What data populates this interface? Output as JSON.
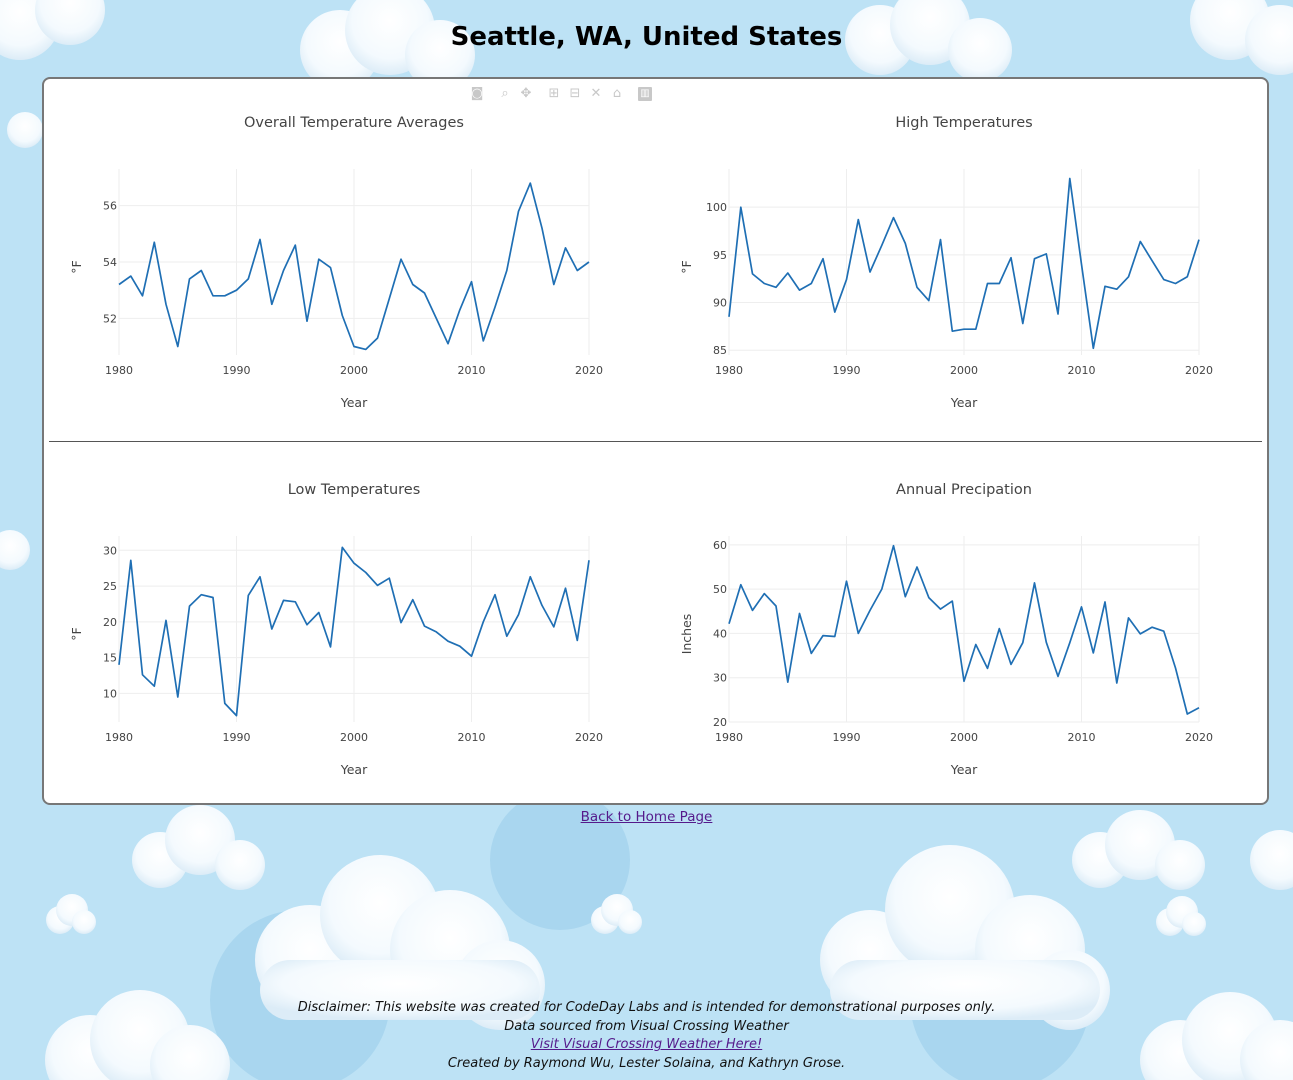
{
  "page": {
    "title": "Seattle, WA, United States",
    "home_link": "Back to Home Page",
    "footer": {
      "disclaimer": "Disclaimer: This website was created for CodeDay Labs and is intended for demonstrational purposes only.",
      "source": "Data sourced from Visual Crossing Weather",
      "visit_link": "Visit Visual Crossing Weather Here!",
      "credits": "Created by Raymond Wu, Lester Solaina, and Kathryn Grose."
    }
  },
  "modebar": {
    "icons": [
      "camera-icon",
      "zoom-icon",
      "pan-icon",
      "zoom-in-icon",
      "zoom-out-icon",
      "autoscale-icon",
      "reset-axes-icon",
      "plotly-logo-icon"
    ]
  },
  "colors": {
    "line": "#1f6fb4",
    "background": "#bde2f5"
  },
  "chart_data": [
    {
      "type": "line",
      "title": "Overall Temperature Averages",
      "xlabel": "Year",
      "ylabel": "°F",
      "xlim": [
        1980,
        2020
      ],
      "ylim": [
        50.7,
        57.3
      ],
      "xticks": [
        1980,
        1990,
        2000,
        2010,
        2020
      ],
      "yticks": [
        52,
        54,
        56
      ],
      "grid": true,
      "x": [
        1980,
        1981,
        1982,
        1983,
        1984,
        1985,
        1986,
        1987,
        1988,
        1989,
        1990,
        1991,
        1992,
        1993,
        1994,
        1995,
        1996,
        1997,
        1998,
        1999,
        2000,
        2001,
        2002,
        2003,
        2004,
        2005,
        2006,
        2007,
        2008,
        2009,
        2010,
        2011,
        2012,
        2013,
        2014,
        2015,
        2016,
        2017,
        2018,
        2019,
        2020
      ],
      "values": [
        53.2,
        53.5,
        52.8,
        54.7,
        52.5,
        51.0,
        53.4,
        53.7,
        52.8,
        52.8,
        53.0,
        53.4,
        54.8,
        52.5,
        53.7,
        54.6,
        51.9,
        54.1,
        53.8,
        52.1,
        51.0,
        50.9,
        51.3,
        52.7,
        54.1,
        53.2,
        52.9,
        52.0,
        51.1,
        52.3,
        53.3,
        51.2,
        52.4,
        53.7,
        55.8,
        56.8,
        55.2,
        53.2,
        54.5,
        53.7,
        54.0
      ]
    },
    {
      "type": "line",
      "title": "High Temperatures",
      "xlabel": "Year",
      "ylabel": "°F",
      "xlim": [
        1980,
        2020
      ],
      "ylim": [
        84.5,
        104
      ],
      "xticks": [
        1980,
        1990,
        2000,
        2010,
        2020
      ],
      "yticks": [
        85,
        90,
        95,
        100
      ],
      "grid": true,
      "x": [
        1980,
        1981,
        1982,
        1983,
        1984,
        1985,
        1986,
        1987,
        1988,
        1989,
        1990,
        1991,
        1992,
        1993,
        1994,
        1995,
        1996,
        1997,
        1998,
        1999,
        2000,
        2001,
        2002,
        2003,
        2004,
        2005,
        2006,
        2007,
        2008,
        2009,
        2010,
        2011,
        2012,
        2013,
        2014,
        2015,
        2016,
        2017,
        2018,
        2019,
        2020
      ],
      "values": [
        88.5,
        100,
        93,
        92,
        91.6,
        93.1,
        91.3,
        92,
        94.6,
        89,
        92.4,
        98.7,
        93.2,
        96,
        98.9,
        96.2,
        91.6,
        90.2,
        96.6,
        87,
        87.2,
        87.2,
        92,
        92,
        94.7,
        87.8,
        94.6,
        95.1,
        88.8,
        103,
        94,
        85.2,
        91.7,
        91.4,
        92.7,
        96.4,
        94.4,
        92.4,
        92,
        92.7,
        96.6
      ]
    },
    {
      "type": "line",
      "title": "Low Temperatures",
      "xlabel": "Year",
      "ylabel": "°F",
      "xlim": [
        1980,
        2020
      ],
      "ylim": [
        6,
        32
      ],
      "xticks": [
        1980,
        1990,
        2000,
        2010,
        2020
      ],
      "yticks": [
        10,
        15,
        20,
        25,
        30
      ],
      "grid": true,
      "x": [
        1980,
        1981,
        1982,
        1983,
        1984,
        1985,
        1986,
        1987,
        1988,
        1989,
        1990,
        1991,
        1992,
        1993,
        1994,
        1995,
        1996,
        1997,
        1998,
        1999,
        2000,
        2001,
        2002,
        2003,
        2004,
        2005,
        2006,
        2007,
        2008,
        2009,
        2010,
        2011,
        2012,
        2013,
        2014,
        2015,
        2016,
        2017,
        2018,
        2019,
        2020
      ],
      "values": [
        14,
        28.6,
        12.6,
        11,
        20.2,
        9.5,
        22.2,
        23.8,
        23.4,
        8.6,
        6.9,
        23.7,
        26.3,
        19,
        23,
        22.8,
        19.6,
        21.3,
        16.5,
        30.4,
        28.2,
        26.9,
        25.1,
        26.1,
        19.9,
        23.1,
        19.4,
        18.6,
        17.3,
        16.6,
        15.2,
        20,
        23.8,
        18,
        21,
        26.3,
        22.3,
        19.3,
        24.7,
        17.4,
        28.6
      ]
    },
    {
      "type": "line",
      "title": "Annual Precipation",
      "xlabel": "Year",
      "ylabel": "Inches",
      "xlim": [
        1980,
        2020
      ],
      "ylim": [
        20,
        62
      ],
      "xticks": [
        1980,
        1990,
        2000,
        2010,
        2020
      ],
      "yticks": [
        20,
        30,
        40,
        50,
        60
      ],
      "grid": true,
      "x": [
        1980,
        1981,
        1982,
        1983,
        1984,
        1985,
        1986,
        1987,
        1988,
        1989,
        1990,
        1991,
        1992,
        1993,
        1994,
        1995,
        1996,
        1997,
        1998,
        1999,
        2000,
        2001,
        2002,
        2003,
        2004,
        2005,
        2006,
        2007,
        2008,
        2009,
        2010,
        2011,
        2012,
        2013,
        2014,
        2015,
        2016,
        2017,
        2018,
        2019,
        2020
      ],
      "values": [
        42.2,
        51,
        45.2,
        49,
        46.2,
        29,
        44.5,
        35.5,
        39.5,
        39.3,
        51.8,
        40,
        45.2,
        50,
        59.8,
        48.3,
        55,
        48.1,
        45.5,
        47.3,
        29.2,
        37.5,
        32.1,
        41.1,
        33,
        37.9,
        51.4,
        38,
        30.3,
        37.9,
        46,
        35.6,
        47.1,
        28.8,
        43.5,
        39.9,
        41.4,
        40.5,
        32.2,
        21.8,
        23.2
      ]
    }
  ]
}
